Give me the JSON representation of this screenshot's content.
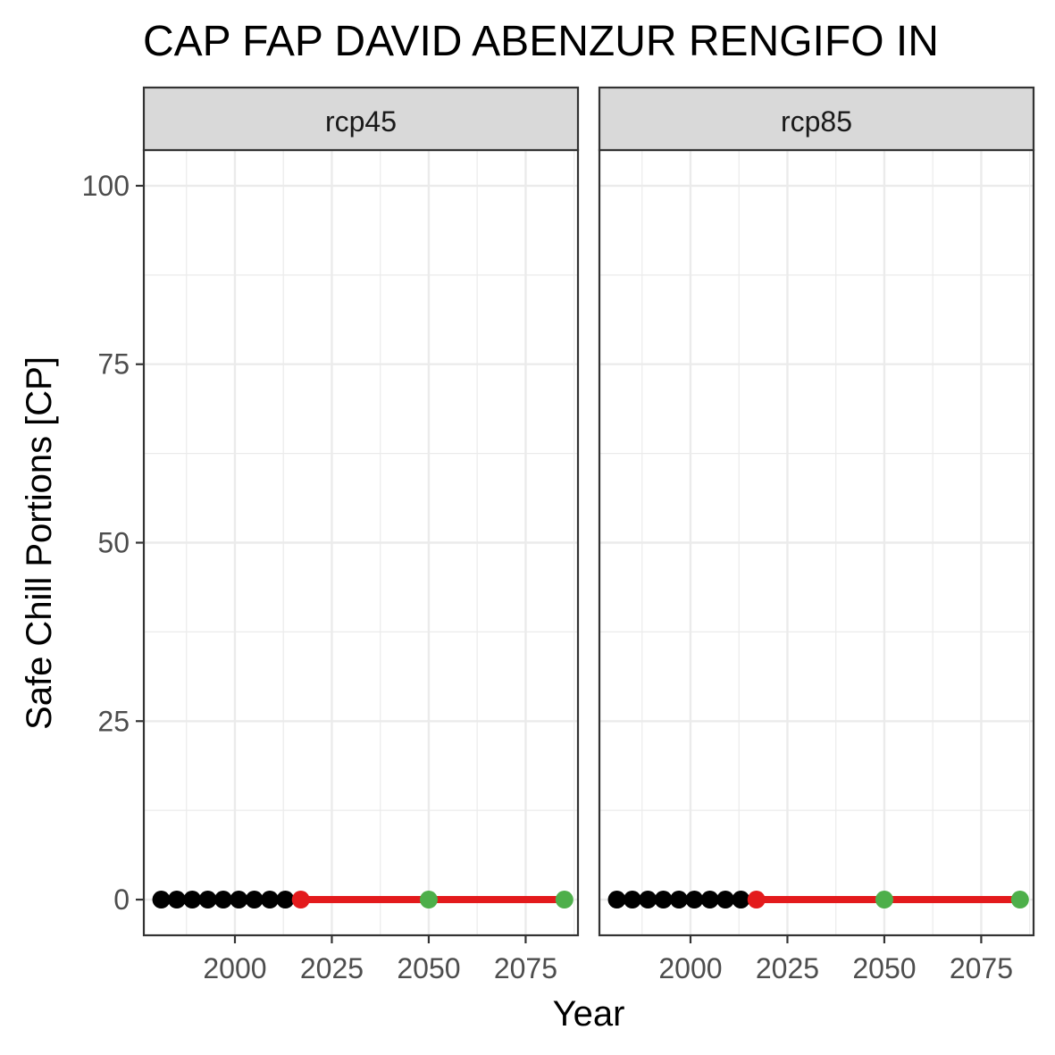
{
  "chart_data": {
    "type": "line",
    "title": "CAP FAP DAVID ABENZUR RENGIFO IN",
    "xlabel": "Year",
    "ylabel": "Safe Chill Portions [CP]",
    "xlim": [
      1976.5,
      2088.5
    ],
    "ylim": [
      -5,
      105
    ],
    "x_ticks": [
      2000,
      2025,
      2050,
      2075
    ],
    "y_ticks": [
      0,
      25,
      50,
      75,
      100
    ],
    "grid": true,
    "colors": {
      "historic": "#000000",
      "projection_line": "#e31a1c",
      "projection_start": "#e31a1c",
      "future": "#4daf4a",
      "strip_bg": "#d9d9d9",
      "panel_border": "#333333",
      "grid": "#ebebeb"
    },
    "panels": [
      {
        "strip": "rcp45",
        "historic_points": [
          {
            "x": 1981,
            "y": 0
          },
          {
            "x": 1985,
            "y": 0
          },
          {
            "x": 1989,
            "y": 0
          },
          {
            "x": 1993,
            "y": 0
          },
          {
            "x": 1997,
            "y": 0
          },
          {
            "x": 2001,
            "y": 0
          },
          {
            "x": 2005,
            "y": 0
          },
          {
            "x": 2009,
            "y": 0
          },
          {
            "x": 2013,
            "y": 0
          }
        ],
        "projection_line": [
          {
            "x": 2017,
            "y": 0
          },
          {
            "x": 2085,
            "y": 0
          }
        ],
        "projection_start": {
          "x": 2017,
          "y": 0
        },
        "future_points": [
          {
            "x": 2050,
            "y": 0
          },
          {
            "x": 2085,
            "y": 0
          }
        ]
      },
      {
        "strip": "rcp85",
        "historic_points": [
          {
            "x": 1981,
            "y": 0
          },
          {
            "x": 1985,
            "y": 0
          },
          {
            "x": 1989,
            "y": 0
          },
          {
            "x": 1993,
            "y": 0
          },
          {
            "x": 1997,
            "y": 0
          },
          {
            "x": 2001,
            "y": 0
          },
          {
            "x": 2005,
            "y": 0
          },
          {
            "x": 2009,
            "y": 0
          },
          {
            "x": 2013,
            "y": 0
          }
        ],
        "projection_line": [
          {
            "x": 2017,
            "y": 0
          },
          {
            "x": 2085,
            "y": 0
          }
        ],
        "projection_start": {
          "x": 2017,
          "y": 0
        },
        "future_points": [
          {
            "x": 2050,
            "y": 0
          },
          {
            "x": 2085,
            "y": 0
          }
        ]
      }
    ]
  }
}
